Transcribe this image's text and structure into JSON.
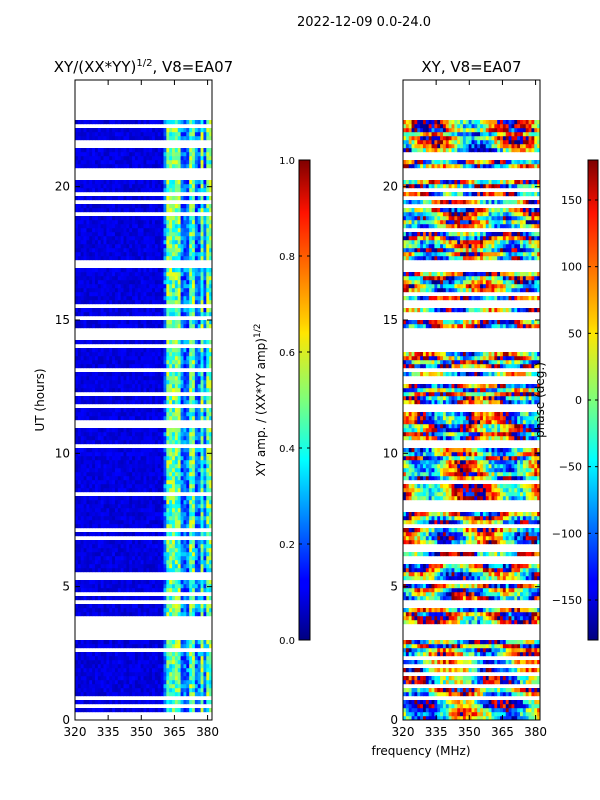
{
  "figure": {
    "suptitle": "2022-12-09 0.0-24.0"
  },
  "chart_data": [
    {
      "type": "heatmap",
      "title_text": "XY/(XX*YY)",
      "title_exponent": "1/2",
      "title_suffix": ", V8=EA07",
      "xlabel": "",
      "ylabel": "UT (hours)",
      "xlim": [
        320,
        382
      ],
      "ylim": [
        0,
        24
      ],
      "xticks": [
        "320",
        "335",
        "350",
        "365",
        "380"
      ],
      "xtick_values": [
        320,
        335,
        350,
        365,
        380
      ],
      "yticks": [
        "0",
        "5",
        "10",
        "15",
        "20"
      ],
      "ytick_values": [
        0,
        5,
        10,
        15,
        20
      ],
      "data_coverage_hours": [
        0,
        22.5
      ],
      "gap_bands_hours": [
        [
          3.0,
          3.6
        ],
        [
          13.0,
          13.25
        ],
        [
          14.3,
          14.7
        ],
        [
          17.0,
          17.3
        ],
        [
          20.3,
          20.5
        ]
      ],
      "rfi_channel_bands_mhz": [
        [
          361,
          364
        ],
        [
          365,
          367
        ],
        [
          371,
          373
        ],
        [
          376,
          378
        ],
        [
          379,
          381
        ]
      ],
      "colorbar": {
        "label_text": "XY amp. / (XX*YY amp)",
        "label_exponent": "1/2",
        "range": [
          0.0,
          1.0
        ],
        "ticks": [
          "0.0",
          "0.2",
          "0.4",
          "0.6",
          "0.8",
          "1.0"
        ],
        "tick_values": [
          0.0,
          0.2,
          0.4,
          0.6,
          0.8,
          1.0
        ]
      }
    },
    {
      "type": "heatmap",
      "title_text": "XY, V8=EA07",
      "xlabel": "frequency (MHz)",
      "ylabel": "",
      "xlim": [
        320,
        382
      ],
      "ylim": [
        0,
        24
      ],
      "xticks": [
        "320",
        "335",
        "350",
        "365",
        "380"
      ],
      "xtick_values": [
        320,
        335,
        350,
        365,
        380
      ],
      "yticks": [
        "0",
        "5",
        "10",
        "15",
        "20"
      ],
      "ytick_values": [
        0,
        5,
        10,
        15,
        20
      ],
      "data_coverage_hours": [
        0,
        22.5
      ],
      "gap_bands_hours": [
        [
          3.0,
          3.6
        ],
        [
          13.0,
          13.25
        ],
        [
          14.3,
          14.7
        ],
        [
          17.0,
          17.3
        ],
        [
          20.3,
          20.5
        ]
      ],
      "colorbar": {
        "label_text": "phase (deg.)",
        "range": [
          -180,
          180
        ],
        "ticks": [
          "−150",
          "−100",
          "−50",
          "0",
          "50",
          "100",
          "150"
        ],
        "tick_values": [
          -150,
          -100,
          -50,
          0,
          50,
          100,
          150
        ]
      }
    }
  ]
}
